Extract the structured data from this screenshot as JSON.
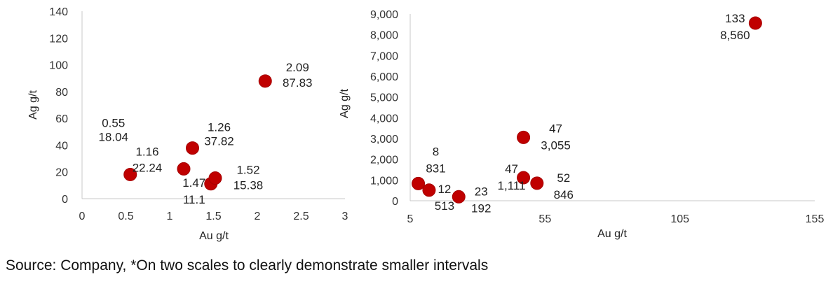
{
  "source_note": "Source: Company, *On two scales to clearly demonstrate smaller intervals",
  "chart_data": [
    {
      "type": "scatter",
      "xlabel": "Au g/t",
      "ylabel": "Ag g/t",
      "xlim": [
        0,
        3
      ],
      "ylim": [
        0,
        140
      ],
      "xticks": [
        0,
        0.5,
        1,
        1.5,
        2,
        2.5,
        3
      ],
      "xtick_labels": [
        "0",
        "0.5",
        "1",
        "1.5",
        "2",
        "2.5",
        "3"
      ],
      "yticks": [
        0,
        20,
        40,
        60,
        80,
        100,
        120,
        140
      ],
      "ytick_labels": [
        "0",
        "20",
        "40",
        "60",
        "80",
        "100",
        "120",
        "140"
      ],
      "points": [
        {
          "x": 0.55,
          "y": 18.04,
          "label_x": "0.55",
          "label_y": "18.04"
        },
        {
          "x": 1.16,
          "y": 22.24,
          "label_x": "1.16",
          "label_y": "22.24"
        },
        {
          "x": 1.26,
          "y": 37.82,
          "label_x": "1.26",
          "label_y": "37.82"
        },
        {
          "x": 1.47,
          "y": 11.1,
          "label_x": "1.47",
          "label_y": "11.1"
        },
        {
          "x": 1.52,
          "y": 15.38,
          "label_x": "1.52",
          "label_y": "15.38"
        },
        {
          "x": 2.09,
          "y": 87.83,
          "label_x": "2.09",
          "label_y": "87.83"
        }
      ]
    },
    {
      "type": "scatter",
      "xlabel": "Au g/t",
      "ylabel": "Ag g/t",
      "xlim": [
        5,
        155
      ],
      "ylim": [
        0,
        9000
      ],
      "xticks": [
        5,
        55,
        105,
        155
      ],
      "xtick_labels": [
        "5",
        "55",
        "105",
        "155"
      ],
      "yticks": [
        0,
        1000,
        2000,
        3000,
        4000,
        5000,
        6000,
        7000,
        8000,
        9000
      ],
      "ytick_labels": [
        "0",
        "1,000",
        "2,000",
        "3,000",
        "4,000",
        "5,000",
        "6,000",
        "7,000",
        "8,000",
        "9,000"
      ],
      "points": [
        {
          "x": 8,
          "y": 831,
          "label_x": "8",
          "label_y": "831"
        },
        {
          "x": 12,
          "y": 513,
          "label_x": "12",
          "label_y": "513"
        },
        {
          "x": 23,
          "y": 192,
          "label_x": "23",
          "label_y": "192"
        },
        {
          "x": 47,
          "y": 3055,
          "label_x": "47",
          "label_y": "3,055"
        },
        {
          "x": 47,
          "y": 1111,
          "label_x": "47",
          "label_y": "1,111"
        },
        {
          "x": 52,
          "y": 846,
          "label_x": "52",
          "label_y": "846"
        },
        {
          "x": 133,
          "y": 8560,
          "label_x": "133",
          "label_y": "8,560"
        }
      ]
    }
  ]
}
